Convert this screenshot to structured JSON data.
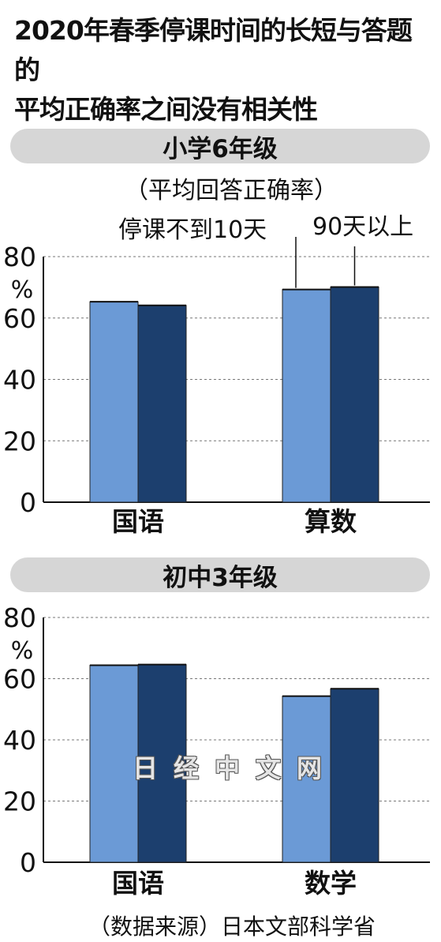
{
  "title": [
    "2020年春季停课时间的长短与答题的",
    "平均正确率之间没有相关性"
  ],
  "subnote": "（平均回答正确率）",
  "colors": {
    "light": "#6b9ad6",
    "dark": "#1c3f6e",
    "pill": "#d6d6d6"
  },
  "chart_data": [
    {
      "type": "bar",
      "title": "小学6年级",
      "unit": "%",
      "categories": [
        "国语",
        "算数"
      ],
      "series": [
        {
          "name": "停课不到10天",
          "values": [
            65.3,
            69.3
          ]
        },
        {
          "name": "90天以上",
          "values": [
            64.1,
            70.1
          ]
        }
      ],
      "ylim": [
        0,
        80
      ],
      "yticks": [
        "0",
        "20",
        "40",
        "60",
        "80"
      ],
      "grid": true
    },
    {
      "type": "bar",
      "title": "初中3年级",
      "unit": "%",
      "categories": [
        "国语",
        "数学"
      ],
      "series": [
        {
          "name": "停课不到10天",
          "values": [
            64.4,
            54.3
          ]
        },
        {
          "name": "90天以上",
          "values": [
            64.6,
            56.7
          ]
        }
      ],
      "ylim": [
        0,
        80
      ],
      "yticks": [
        "0",
        "20",
        "40",
        "60",
        "80"
      ],
      "grid": true
    }
  ],
  "source": "（数据来源）日本文部科学省",
  "watermark": "日经中文网"
}
